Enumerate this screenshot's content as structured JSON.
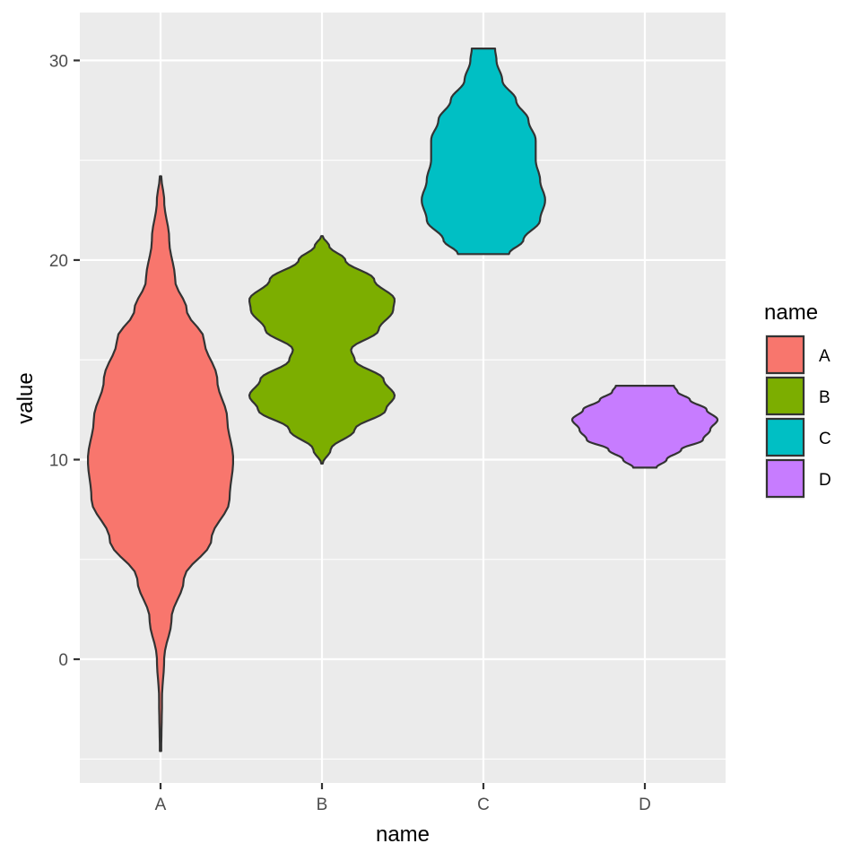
{
  "chart_data": {
    "type": "violin",
    "xlabel": "name",
    "ylabel": "value",
    "categories": [
      "A",
      "B",
      "C",
      "D"
    ],
    "yticks": [
      0,
      10,
      20,
      30
    ],
    "ylim": [
      -6.2,
      32.4
    ],
    "grid": true,
    "legend": {
      "title": "name",
      "placement": "right",
      "entries": [
        "A",
        "B",
        "C",
        "D"
      ]
    },
    "series": [
      {
        "name": "A",
        "color": "#F8766D",
        "min": -4.6,
        "max": 24.2,
        "density": [
          [
            -4.6,
            0.01
          ],
          [
            -2,
            0.02
          ],
          [
            0,
            0.05
          ],
          [
            2,
            0.15
          ],
          [
            4,
            0.32
          ],
          [
            6,
            0.7
          ],
          [
            8,
            0.95
          ],
          [
            10,
            1.0
          ],
          [
            12,
            0.92
          ],
          [
            14,
            0.78
          ],
          [
            16,
            0.6
          ],
          [
            17.5,
            0.36
          ],
          [
            19,
            0.2
          ],
          [
            21,
            0.12
          ],
          [
            23,
            0.05
          ],
          [
            24.2,
            0.01
          ]
        ]
      },
      {
        "name": "B",
        "color": "#7CAE00",
        "min": 9.8,
        "max": 21.2,
        "density": [
          [
            9.8,
            0.01
          ],
          [
            10.5,
            0.12
          ],
          [
            11.5,
            0.45
          ],
          [
            12.5,
            0.88
          ],
          [
            13.2,
            1.0
          ],
          [
            14,
            0.85
          ],
          [
            15,
            0.45
          ],
          [
            15.5,
            0.4
          ],
          [
            16.5,
            0.78
          ],
          [
            17.5,
            0.98
          ],
          [
            18,
            1.0
          ],
          [
            19,
            0.72
          ],
          [
            20,
            0.32
          ],
          [
            20.7,
            0.1
          ],
          [
            21.2,
            0.01
          ]
        ]
      },
      {
        "name": "C",
        "color": "#00BFC4",
        "min": 20.3,
        "max": 30.6,
        "density": [
          [
            20.3,
            0.35
          ],
          [
            21,
            0.55
          ],
          [
            22,
            0.78
          ],
          [
            23,
            0.85
          ],
          [
            24,
            0.78
          ],
          [
            25,
            0.72
          ],
          [
            26,
            0.72
          ],
          [
            27,
            0.62
          ],
          [
            28,
            0.45
          ],
          [
            29,
            0.26
          ],
          [
            30,
            0.18
          ],
          [
            30.6,
            0.16
          ]
        ]
      },
      {
        "name": "D",
        "color": "#C77CFF",
        "min": 9.6,
        "max": 13.7,
        "density": [
          [
            9.6,
            0.16
          ],
          [
            10,
            0.3
          ],
          [
            10.5,
            0.5
          ],
          [
            11,
            0.8
          ],
          [
            11.5,
            0.9
          ],
          [
            12,
            1.0
          ],
          [
            12.5,
            0.85
          ],
          [
            13,
            0.62
          ],
          [
            13.4,
            0.45
          ],
          [
            13.7,
            0.4
          ]
        ]
      }
    ]
  }
}
